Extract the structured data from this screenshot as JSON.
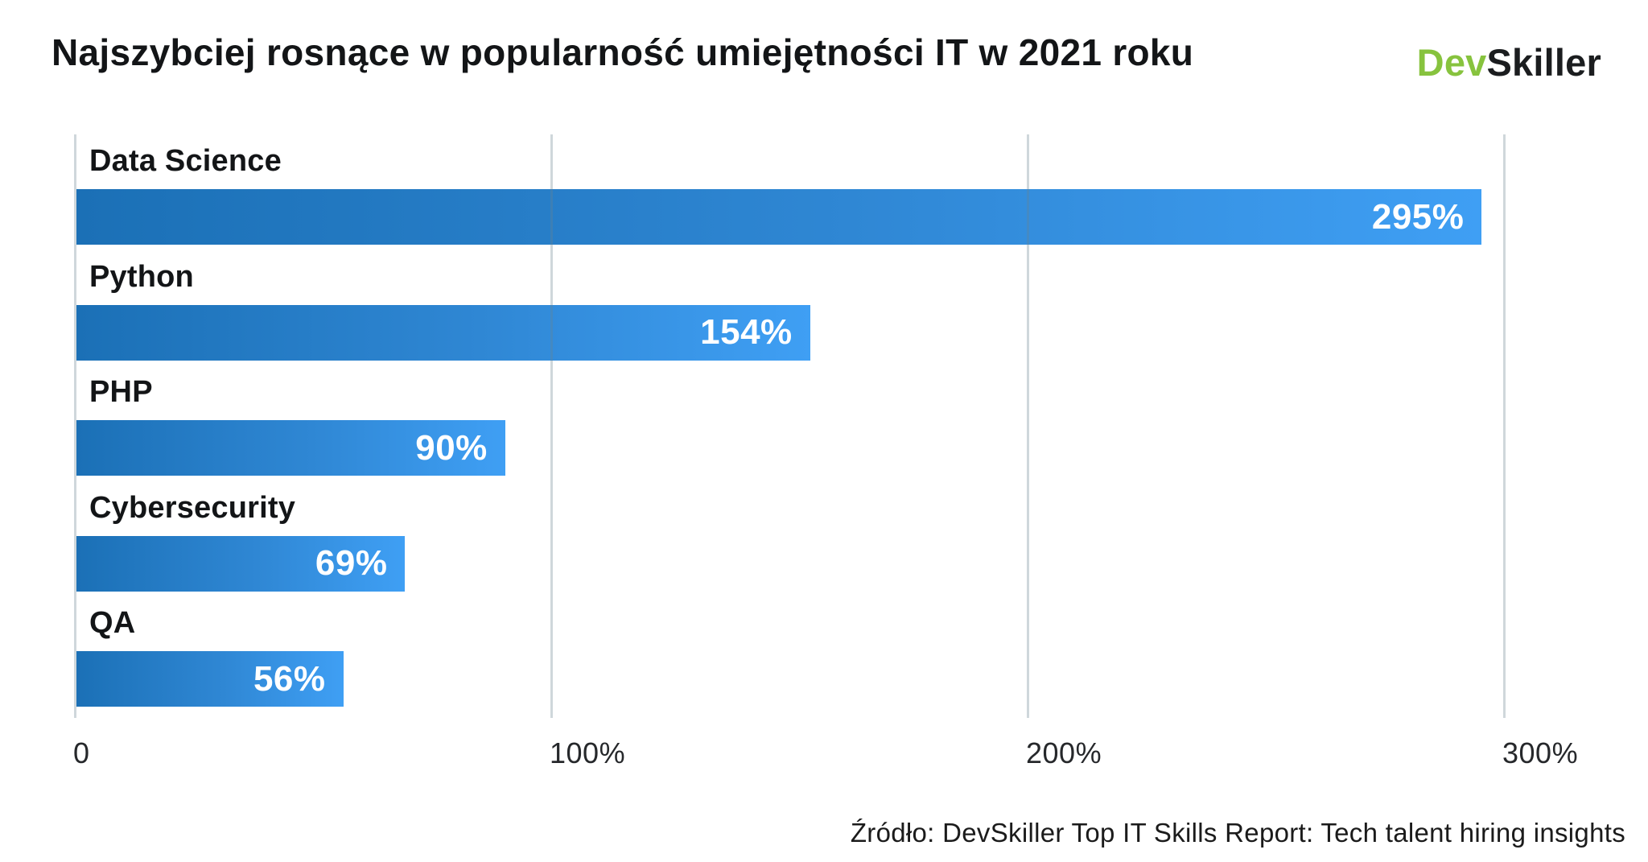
{
  "title": "Najszybciej rosnące w popularność umiejętności IT w 2021 roku",
  "logo": {
    "green_text": "Dev",
    "dark_text": "Skiller",
    "green_color": "#87c33e",
    "dark_color": "#1b1d1f"
  },
  "source": "Źródło: DevSkiller Top IT Skills Report: Tech talent hiring insights",
  "chart_data": {
    "type": "bar",
    "orientation": "horizontal",
    "title": "Najszybciej rosnące w popularność umiejętności IT w 2021 roku",
    "categories": [
      "Data Science",
      "Python",
      "PHP",
      "Cybersecurity",
      "QA"
    ],
    "values": [
      295,
      154,
      90,
      69,
      56
    ],
    "value_labels": [
      "295%",
      "154%",
      "90%",
      "69%",
      "56%"
    ],
    "unit": "%",
    "x_ticks": [
      "0",
      "100%",
      "200%",
      "300%"
    ],
    "x_tick_values": [
      0,
      100,
      200,
      300
    ],
    "xlim": [
      0,
      330
    ],
    "grid": true,
    "legend": false,
    "bar_gradient_left": "#1b70b6",
    "bar_gradient_right": "#3f9ff4",
    "gridline_color": "#c9d6db",
    "value_label_color": "#ffffff",
    "category_label_color": "#131517"
  }
}
